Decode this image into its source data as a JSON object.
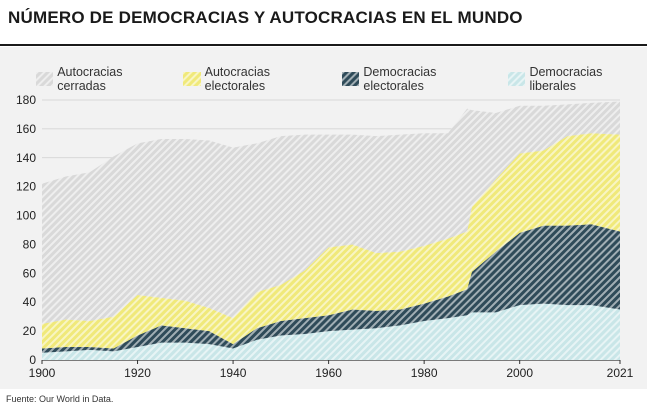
{
  "title": "NÚMERO DE DEMOCRACIAS Y AUTOCRACIAS EN EL MUNDO",
  "source": "Fuente: Our World in Data.",
  "colors": {
    "autocracias_cerradas": "#d9d9d9",
    "autocracias_electorales": "#f0e97a",
    "democracias_electorales": "#2f4b59",
    "democracias_liberales": "#c9e6e8",
    "panel_background": "#f2f2f2"
  },
  "legend": [
    {
      "key": "autocracias_cerradas",
      "label": "Autocracias cerradas"
    },
    {
      "key": "autocracias_electorales",
      "label": "Autocracias electorales"
    },
    {
      "key": "democracias_electorales",
      "label": "Democracias electorales"
    },
    {
      "key": "democracias_liberales",
      "label": "Democracias liberales"
    }
  ],
  "chart_data": {
    "type": "area",
    "stacked": true,
    "title": "NÚMERO DE DEMOCRACIAS Y AUTOCRACIAS EN EL MUNDO",
    "xlabel": "",
    "ylabel": "",
    "xlim": [
      1900,
      2021
    ],
    "ylim": [
      0,
      180
    ],
    "x_ticks": [
      "1900",
      "1920",
      "1940",
      "1960",
      "1980",
      "2000",
      "2021"
    ],
    "x_tick_values": [
      1900,
      1920,
      1940,
      1960,
      1980,
      2000,
      2021
    ],
    "y_ticks": [
      "0",
      "20",
      "40",
      "60",
      "80",
      "100",
      "120",
      "140",
      "160",
      "180"
    ],
    "y_tick_values": [
      0,
      20,
      40,
      60,
      80,
      100,
      120,
      140,
      160,
      180
    ],
    "grid": "horizontal",
    "legend_position": "top",
    "x": [
      1900,
      1905,
      1910,
      1915,
      1920,
      1925,
      1930,
      1935,
      1940,
      1945,
      1950,
      1955,
      1960,
      1965,
      1970,
      1975,
      1980,
      1985,
      1989,
      1990,
      1995,
      2000,
      2005,
      2010,
      2015,
      2021
    ],
    "series": [
      {
        "name": "Democracias liberales",
        "key": "democracias_liberales",
        "values": [
          5,
          6,
          7,
          6,
          9,
          12,
          12,
          11,
          8,
          14,
          17,
          18,
          20,
          21,
          22,
          24,
          27,
          29,
          31,
          33,
          33,
          38,
          39,
          38,
          38,
          35
        ]
      },
      {
        "name": "Democracias electorales",
        "key": "democracias_electorales",
        "values": [
          3,
          3,
          2,
          2,
          8,
          12,
          10,
          9,
          3,
          8,
          10,
          11,
          11,
          14,
          12,
          11,
          12,
          15,
          18,
          28,
          42,
          50,
          54,
          55,
          56,
          54
        ]
      },
      {
        "name": "Autocracias electorales",
        "key": "autocracias_electorales",
        "values": [
          17,
          19,
          18,
          22,
          28,
          19,
          19,
          16,
          18,
          25,
          25,
          33,
          47,
          45,
          40,
          40,
          40,
          40,
          40,
          45,
          50,
          55,
          52,
          62,
          63,
          67
        ]
      },
      {
        "name": "Autocracias cerradas",
        "key": "autocracias_cerradas",
        "values": [
          97,
          99,
          103,
          111,
          105,
          110,
          112,
          116,
          118,
          103,
          103,
          94,
          78,
          76,
          81,
          81,
          78,
          73,
          85,
          67,
          46,
          33,
          31,
          22,
          21,
          23
        ]
      }
    ]
  }
}
